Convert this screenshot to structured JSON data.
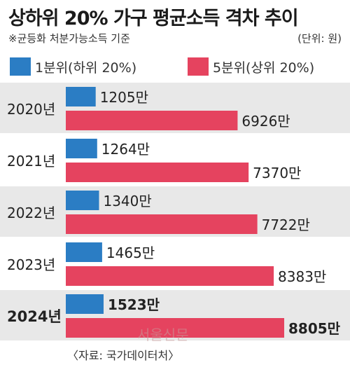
{
  "title": "상하위 20% 가구 평균소득 격차 추이",
  "note": "※균등화 처분가능소득 기준",
  "unit": "(단위: 원)",
  "source": "〈자료: 국가데이터처〉",
  "watermark": "서울신문",
  "colors": {
    "low": "#2b7dc4",
    "high": "#e5435f",
    "band": "#e8e8e8"
  },
  "chart_data": {
    "type": "bar",
    "categories": [
      "2020년",
      "2021년",
      "2022년",
      "2023년",
      "2024년"
    ],
    "series": [
      {
        "name": "1분위(하위 20%)",
        "values": [
          1205,
          1264,
          1340,
          1465,
          1523
        ]
      },
      {
        "name": "5분위(상위 20%)",
        "values": [
          6926,
          7370,
          7722,
          8383,
          8805
        ]
      }
    ],
    "value_labels": [
      [
        "1205만",
        "1264만",
        "1340만",
        "1465만",
        "1523만"
      ],
      [
        "6926만",
        "7370만",
        "7722만",
        "8383만",
        "8805만"
      ]
    ],
    "highlight_category": "2024년",
    "orientation": "horizontal",
    "title": "상하위 20% 가구 평균소득 격차 추이"
  }
}
